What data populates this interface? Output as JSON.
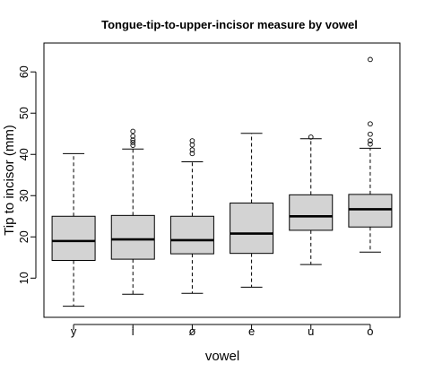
{
  "chart_data": {
    "type": "boxplot",
    "title": "Tongue-tip-to-upper-incisor measure by vowel",
    "xlabel": "vowel",
    "ylabel": "Tip to incisor (mm)",
    "ylim": [
      0.5,
      67
    ],
    "yticks": [
      "10",
      "20",
      "30",
      "40",
      "50",
      "60"
    ],
    "grid": false,
    "legend": "none",
    "box_fill": "#d3d3d3",
    "stroke": "#000000",
    "categories": [
      "y",
      "i",
      "ø",
      "e",
      "u",
      "o"
    ],
    "boxes": [
      {
        "label": "y",
        "whisker_low": 3.2,
        "q1": 14.3,
        "median": 19.0,
        "q3": 25.0,
        "whisker_high": 40.2,
        "outliers": []
      },
      {
        "label": "i",
        "whisker_low": 6.1,
        "q1": 14.6,
        "median": 19.4,
        "q3": 25.2,
        "whisker_high": 41.3,
        "outliers": [
          42.2,
          42.9,
          43.5,
          44.4,
          45.6
        ]
      },
      {
        "label": "ø",
        "whisker_low": 6.3,
        "q1": 15.9,
        "median": 19.2,
        "q3": 25.0,
        "whisker_high": 38.2,
        "outliers": [
          40.2,
          41.1,
          42.3,
          43.3
        ]
      },
      {
        "label": "e",
        "whisker_low": 7.8,
        "q1": 16.0,
        "median": 20.8,
        "q3": 28.2,
        "whisker_high": 45.1,
        "outliers": []
      },
      {
        "label": "u",
        "whisker_low": 13.3,
        "q1": 21.6,
        "median": 25.0,
        "q3": 30.2,
        "whisker_high": 43.8,
        "outliers": [
          44.2
        ]
      },
      {
        "label": "o",
        "whisker_low": 16.3,
        "q1": 22.4,
        "median": 26.7,
        "q3": 30.3,
        "whisker_high": 41.5,
        "outliers": [
          42.5,
          43.3,
          44.9,
          47.4,
          63.0
        ]
      }
    ]
  }
}
